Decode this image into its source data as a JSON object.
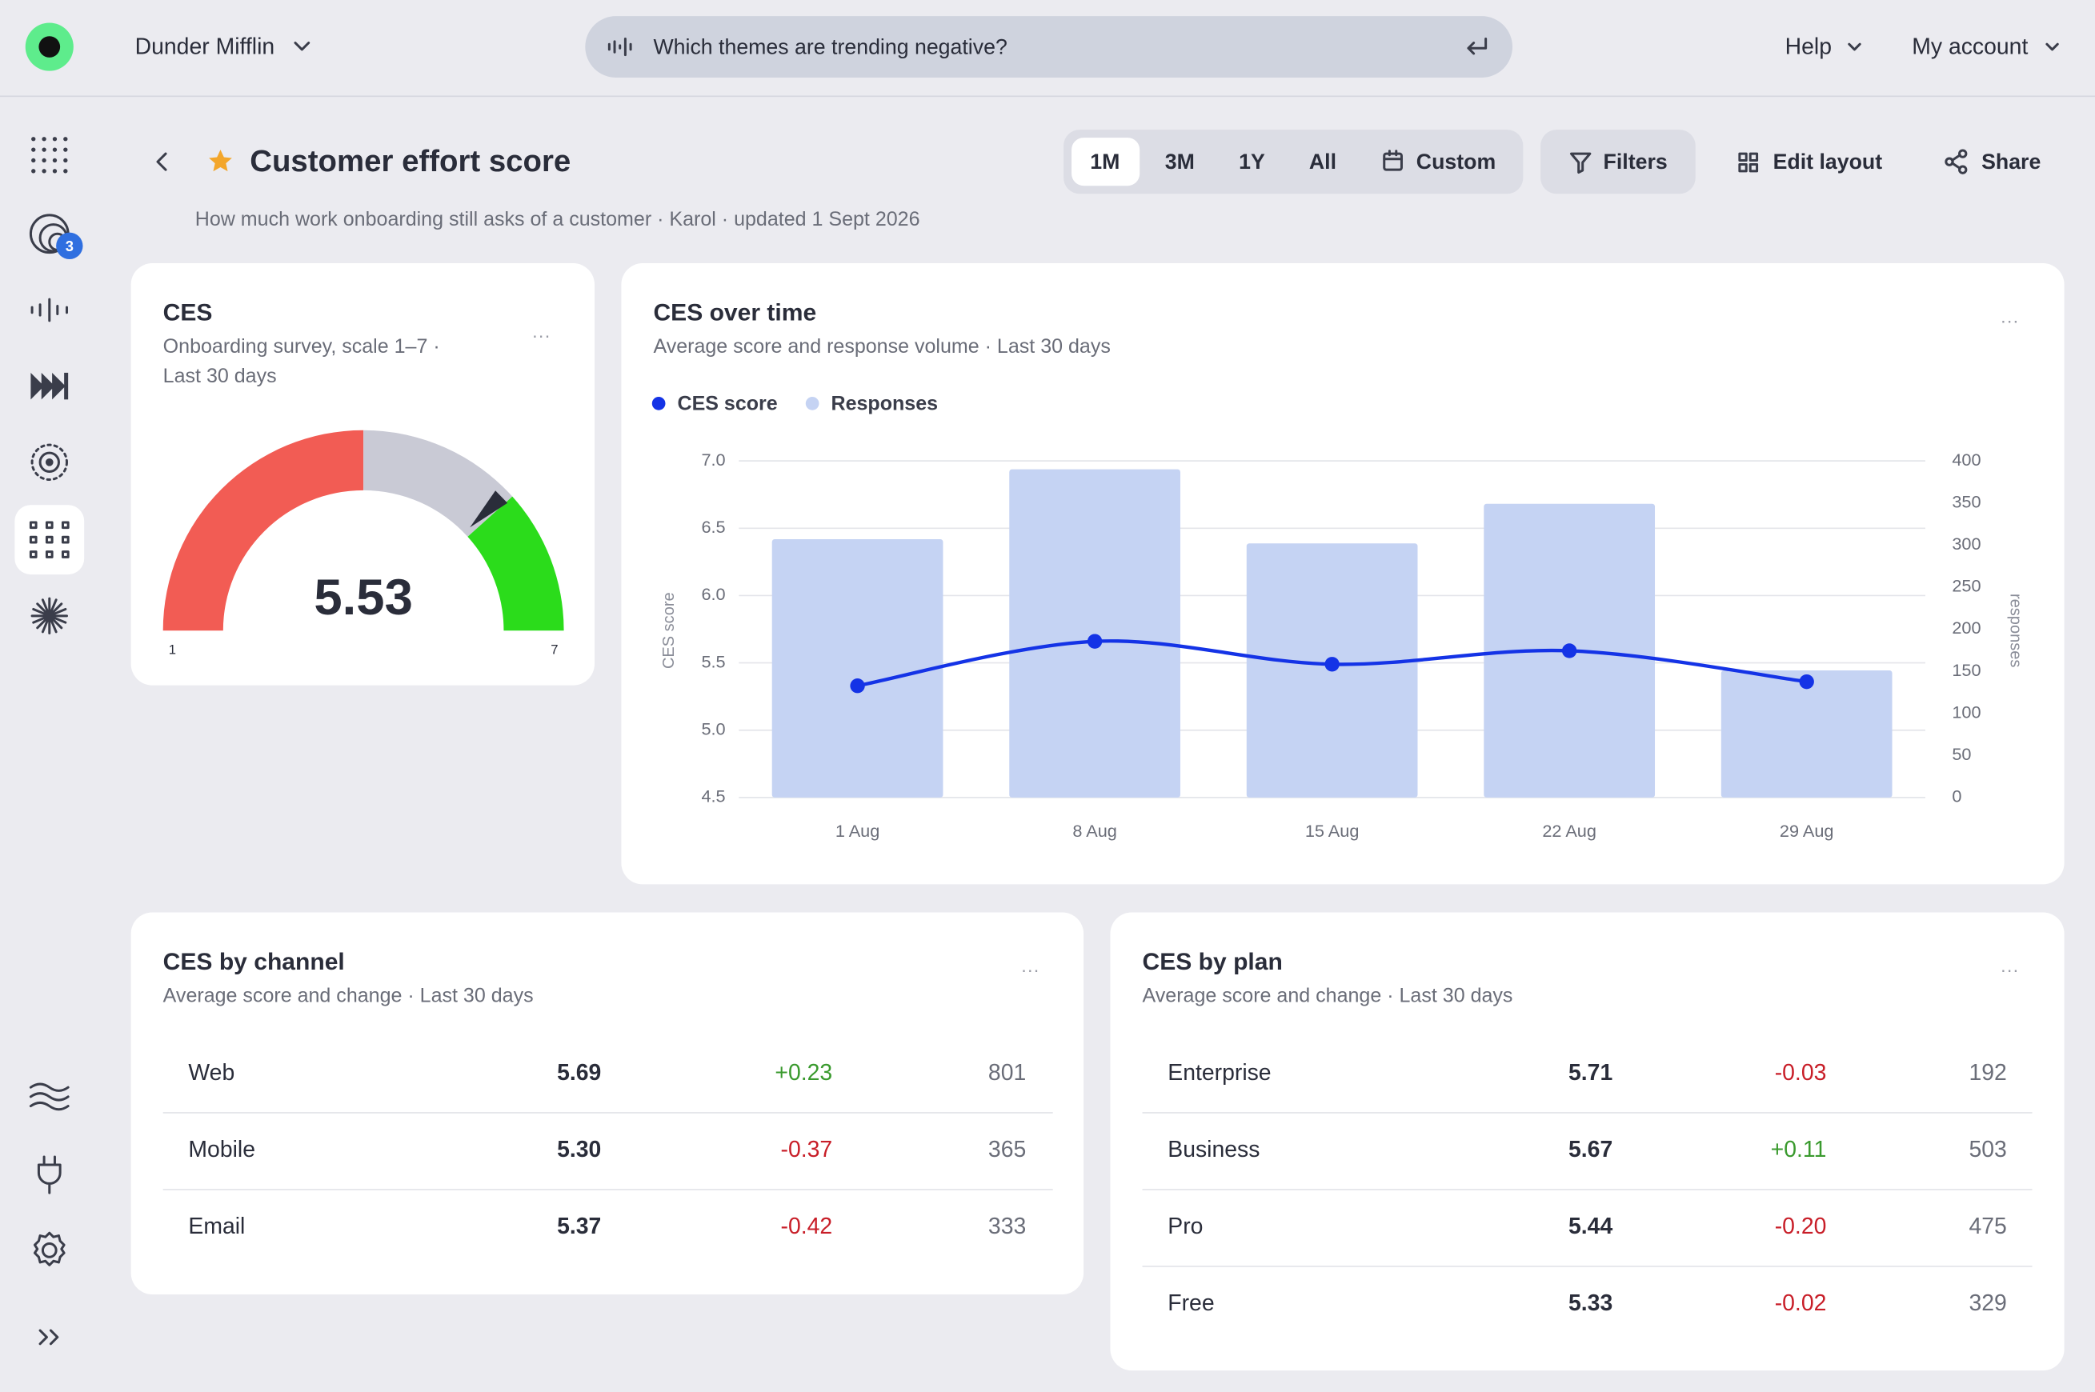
{
  "header": {
    "org": "Dunder Mifflin",
    "search": "Which themes are trending negative?",
    "help": "Help",
    "account": "My account"
  },
  "sidebar": {
    "badge": 3
  },
  "page": {
    "title": "Customer effort score",
    "subtitle": "How much work onboarding still asks of a customer · Karol · updated 1 Sept 2026",
    "ranges": [
      "1M",
      "3M",
      "1Y",
      "All",
      "Custom"
    ],
    "filters": "Filters",
    "edit": "Edit layout",
    "share": "Share"
  },
  "chart_data": [
    {
      "type": "gauge",
      "title": "CES",
      "subtitle": "Onboarding survey, scale 1–7 · Last 30 days",
      "value": 5.53,
      "min": 1,
      "max": 7,
      "bands": [
        {
          "from": 1,
          "to": 4,
          "color": "#f25c54"
        },
        {
          "from": 4,
          "to": 5.6,
          "color": "#c9cad5"
        },
        {
          "from": 5.6,
          "to": 7,
          "color": "#2bdc1b"
        }
      ],
      "needle_color": "#2a2d3a"
    },
    {
      "type": "bar-line",
      "title": "CES over time",
      "subtitle": "Average score and response volume · Last 30 days",
      "categories": [
        "1 Aug",
        "8 Aug",
        "15 Aug",
        "22 Aug",
        "29 Aug"
      ],
      "series": [
        {
          "name": "CES score",
          "color": "#1433e6",
          "values": [
            5.33,
            5.66,
            5.49,
            5.59,
            5.36
          ]
        },
        {
          "name": "Responses",
          "color": "#c5d3f3",
          "values": [
            307,
            390,
            302,
            349,
            151
          ],
          "axis": "y2"
        }
      ],
      "ylabel": "CES score",
      "y2label": "responses",
      "ylim": [
        4.5,
        7
      ],
      "yticks": [
        4.5,
        {
          "value": 5,
          "label": "5.0"
        },
        5.5,
        {
          "value": 6,
          "label": "6.0"
        },
        6.5,
        {
          "value": 7,
          "label": "7.0"
        }
      ],
      "y2lim": [
        0,
        400
      ],
      "y2ticks": [
        0,
        50,
        100,
        150,
        200,
        250,
        300,
        350,
        400
      ],
      "grid": true
    }
  ],
  "tables": [
    {
      "title": "CES by channel",
      "subtitle": "Average score and change · Last 30 days",
      "rows": [
        {
          "name": "Web",
          "score": "5.69",
          "change": "+0.23",
          "count": 801
        },
        {
          "name": "Mobile",
          "score": "5.30",
          "change": "-0.37",
          "count": 365
        },
        {
          "name": "Email",
          "score": "5.37",
          "change": "-0.42",
          "count": 333
        }
      ]
    },
    {
      "title": "CES by plan",
      "subtitle": "Average score and change · Last 30 days",
      "rows": [
        {
          "name": "Enterprise",
          "score": "5.71",
          "change": "-0.03",
          "count": 192
        },
        {
          "name": "Business",
          "score": "5.67",
          "change": "+0.11",
          "count": 503
        },
        {
          "name": "Pro",
          "score": "5.44",
          "change": "-0.20",
          "count": 475
        },
        {
          "name": "Free",
          "score": "5.33",
          "change": "-0.02",
          "count": 329
        }
      ]
    }
  ]
}
